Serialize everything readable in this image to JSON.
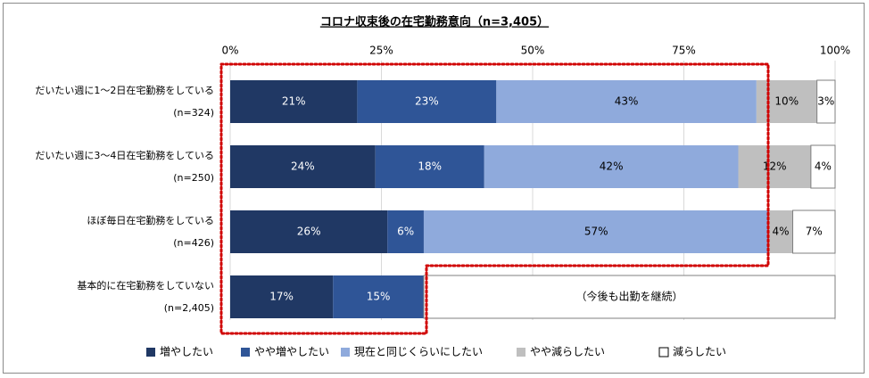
{
  "chart_data": {
    "type": "bar",
    "orientation": "horizontal",
    "stacked": true,
    "title": "コロナ収束後の在宅勤務意向（n=3,405）",
    "xlim": [
      0,
      100
    ],
    "xticks": [
      "0%",
      "25%",
      "50%",
      "75%",
      "100%"
    ],
    "grid": true,
    "legend_position": "bottom",
    "categories": [
      {
        "label": "だいたい週に1〜2日在宅勤務をしている",
        "n": "(n=324)"
      },
      {
        "label": "だいたい週に3〜4日在宅勤務をしている",
        "n": "(n=250)"
      },
      {
        "label": "ほぼ毎日在宅勤務をしている",
        "n": "(n=426)"
      },
      {
        "label": "基本的に在宅勤務をしていない",
        "n": "(n=2,405)"
      }
    ],
    "series": [
      {
        "name": "増やしたい",
        "color": "#203864",
        "values": [
          21,
          24,
          26,
          17
        ],
        "labels": [
          "21%",
          "24%",
          "26%",
          "17%"
        ]
      },
      {
        "name": "やや増やしたい",
        "color": "#2f5597",
        "values": [
          23,
          18,
          6,
          15
        ],
        "labels": [
          "23%",
          "18%",
          "6%",
          "15%"
        ]
      },
      {
        "name": "現在と同じくらいにしたい",
        "color": "#8faadc",
        "values": [
          43,
          42,
          57,
          null
        ],
        "labels": [
          "43%",
          "42%",
          "57%",
          ""
        ]
      },
      {
        "name": "やや減らしたい",
        "color": "#bfbfbf",
        "values": [
          10,
          12,
          4,
          null
        ],
        "labels": [
          "10%",
          "12%",
          "4%",
          ""
        ]
      },
      {
        "name": "減らしたい",
        "color": "#ffffff",
        "values": [
          3,
          4,
          7,
          null
        ],
        "labels": [
          "3%",
          "4%",
          "7%",
          ""
        ]
      }
    ],
    "annotation": "（今後も出勤を継続）"
  }
}
